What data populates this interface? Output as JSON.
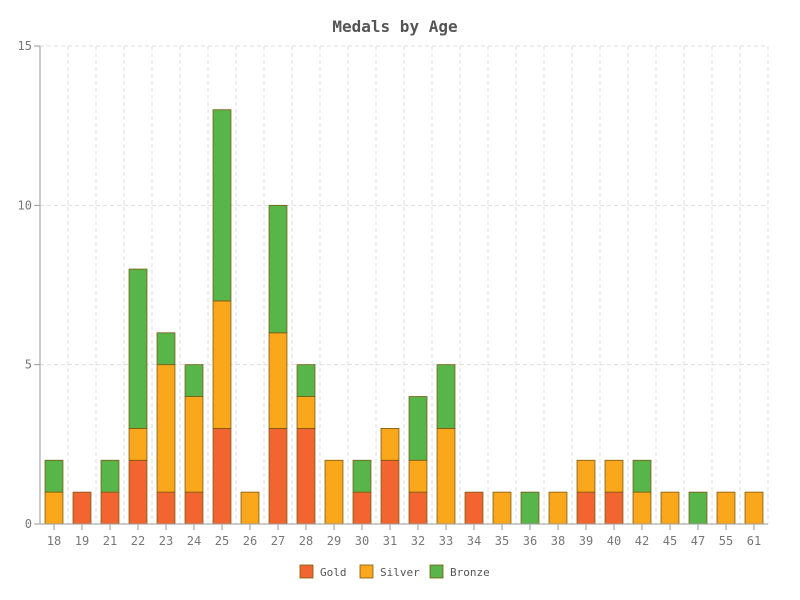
{
  "chart_data": {
    "type": "bar",
    "stacked": true,
    "title": "Medals by Age",
    "xlabel": "",
    "ylabel": "",
    "ylim": [
      0,
      15
    ],
    "yticks": [
      0,
      5,
      10,
      15
    ],
    "grid": true,
    "legend_position": "bottom-center",
    "categories": [
      "18",
      "19",
      "21",
      "22",
      "23",
      "24",
      "25",
      "26",
      "27",
      "28",
      "29",
      "30",
      "31",
      "32",
      "33",
      "34",
      "35",
      "36",
      "38",
      "39",
      "40",
      "42",
      "45",
      "47",
      "55",
      "61"
    ],
    "series": [
      {
        "name": "Gold",
        "color": "#f26430",
        "values": [
          0,
          1,
          1,
          2,
          1,
          1,
          3,
          0,
          3,
          3,
          0,
          1,
          2,
          1,
          0,
          1,
          0,
          0,
          0,
          1,
          1,
          0,
          0,
          0,
          0,
          0
        ]
      },
      {
        "name": "Silver",
        "color": "#fba71b",
        "values": [
          1,
          0,
          0,
          1,
          4,
          3,
          4,
          1,
          3,
          1,
          2,
          0,
          1,
          1,
          3,
          0,
          1,
          0,
          1,
          1,
          1,
          1,
          1,
          0,
          1,
          1
        ]
      },
      {
        "name": "Bronze",
        "color": "#57b54a",
        "values": [
          1,
          0,
          1,
          5,
          1,
          1,
          6,
          0,
          4,
          1,
          0,
          1,
          0,
          2,
          2,
          0,
          0,
          1,
          0,
          0,
          0,
          1,
          0,
          1,
          0,
          0
        ]
      }
    ]
  }
}
